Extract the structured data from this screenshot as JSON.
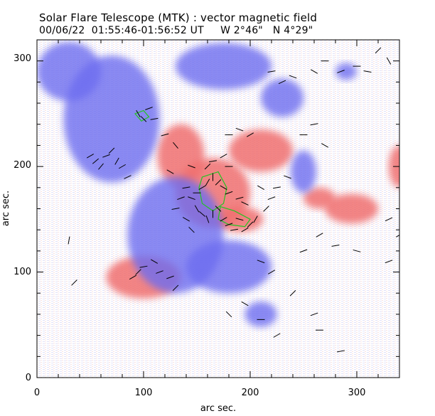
{
  "header": {
    "title": "Solar Flare Telescope (MTK) : vector magnetic field",
    "subtitle": "00/06/22  01:55:46-01:56:52 UT     W 2°46\"   N 4°29\""
  },
  "chart_data": {
    "type": "heatmap",
    "xlabel": "arc sec.",
    "ylabel": "arc sec.",
    "xlim": [
      0,
      340
    ],
    "ylim": [
      0,
      320
    ],
    "xticks": [
      "0",
      "100",
      "200",
      "300"
    ],
    "yticks": [
      "0",
      "100",
      "200",
      "300"
    ],
    "grid": false,
    "colors": {
      "positive_polarity": "#f07070",
      "negative_polarity": "#6d6df0",
      "contour": "#22c422",
      "vectors": "#000000"
    },
    "regions": [
      {
        "polarity": "positive",
        "x": 165,
        "y": 175,
        "rx": 35,
        "ry": 33
      },
      {
        "polarity": "positive",
        "x": 135,
        "y": 210,
        "rx": 22,
        "ry": 30
      },
      {
        "polarity": "positive",
        "x": 190,
        "y": 150,
        "rx": 22,
        "ry": 12
      },
      {
        "polarity": "positive",
        "x": 210,
        "y": 215,
        "rx": 30,
        "ry": 20
      },
      {
        "polarity": "positive",
        "x": 100,
        "y": 95,
        "rx": 35,
        "ry": 20
      },
      {
        "polarity": "positive",
        "x": 295,
        "y": 160,
        "rx": 25,
        "ry": 14
      },
      {
        "polarity": "positive",
        "x": 265,
        "y": 170,
        "rx": 15,
        "ry": 10
      },
      {
        "polarity": "positive",
        "x": 340,
        "y": 200,
        "rx": 10,
        "ry": 20
      },
      {
        "polarity": "negative",
        "x": 70,
        "y": 245,
        "rx": 45,
        "ry": 60
      },
      {
        "polarity": "negative",
        "x": 130,
        "y": 135,
        "rx": 45,
        "ry": 55
      },
      {
        "polarity": "negative",
        "x": 30,
        "y": 290,
        "rx": 30,
        "ry": 28
      },
      {
        "polarity": "negative",
        "x": 175,
        "y": 295,
        "rx": 45,
        "ry": 22
      },
      {
        "polarity": "negative",
        "x": 230,
        "y": 265,
        "rx": 20,
        "ry": 18
      },
      {
        "polarity": "negative",
        "x": 180,
        "y": 105,
        "rx": 40,
        "ry": 25
      },
      {
        "polarity": "negative",
        "x": 210,
        "y": 60,
        "rx": 15,
        "ry": 12
      },
      {
        "polarity": "negative",
        "x": 250,
        "y": 195,
        "rx": 12,
        "ry": 20
      },
      {
        "polarity": "negative",
        "x": 290,
        "y": 290,
        "rx": 10,
        "ry": 8
      }
    ],
    "contours": [
      {
        "points": [
          [
            155,
            190
          ],
          [
            170,
            195
          ],
          [
            178,
            180
          ],
          [
            175,
            165
          ],
          [
            165,
            158
          ],
          [
            155,
            165
          ],
          [
            152,
            180
          ]
        ]
      },
      {
        "points": [
          [
            172,
            162
          ],
          [
            185,
            158
          ],
          [
            200,
            150
          ],
          [
            195,
            143
          ],
          [
            180,
            145
          ],
          [
            170,
            150
          ]
        ]
      },
      {
        "points": [
          [
            92,
            250
          ],
          [
            100,
            253
          ],
          [
            105,
            247
          ],
          [
            98,
            243
          ]
        ]
      }
    ],
    "vectors": [
      [
        50,
        210,
        30
      ],
      [
        55,
        205,
        40
      ],
      [
        60,
        200,
        50
      ],
      [
        65,
        210,
        20
      ],
      [
        70,
        215,
        45
      ],
      [
        75,
        205,
        60
      ],
      [
        80,
        200,
        30
      ],
      [
        85,
        190,
        25
      ],
      [
        95,
        250,
        -60
      ],
      [
        100,
        245,
        -45
      ],
      [
        105,
        255,
        20
      ],
      [
        110,
        245,
        10
      ],
      [
        120,
        230,
        15
      ],
      [
        125,
        195,
        -30
      ],
      [
        130,
        220,
        -50
      ],
      [
        140,
        180,
        10
      ],
      [
        145,
        170,
        -20
      ],
      [
        150,
        175,
        0
      ],
      [
        155,
        180,
        30
      ],
      [
        160,
        185,
        60
      ],
      [
        165,
        190,
        90
      ],
      [
        170,
        185,
        45
      ],
      [
        175,
        180,
        -30
      ],
      [
        180,
        175,
        20
      ],
      [
        150,
        160,
        -60
      ],
      [
        155,
        155,
        -40
      ],
      [
        160,
        150,
        -70
      ],
      [
        165,
        155,
        -90
      ],
      [
        170,
        160,
        -45
      ],
      [
        175,
        150,
        30
      ],
      [
        180,
        145,
        20
      ],
      [
        185,
        140,
        10
      ],
      [
        190,
        150,
        -15
      ],
      [
        195,
        140,
        30
      ],
      [
        200,
        145,
        45
      ],
      [
        205,
        150,
        60
      ],
      [
        140,
        150,
        -30
      ],
      [
        145,
        140,
        -45
      ],
      [
        130,
        160,
        10
      ],
      [
        135,
        170,
        20
      ],
      [
        160,
        200,
        45
      ],
      [
        165,
        205,
        10
      ],
      [
        145,
        200,
        -20
      ],
      [
        180,
        200,
        0
      ],
      [
        175,
        210,
        30
      ],
      [
        210,
        180,
        -30
      ],
      [
        220,
        170,
        20
      ],
      [
        215,
        160,
        45
      ],
      [
        225,
        180,
        10
      ],
      [
        235,
        190,
        -20
      ],
      [
        190,
        170,
        15
      ],
      [
        195,
        165,
        -25
      ],
      [
        260,
        290,
        -30
      ],
      [
        270,
        300,
        0
      ],
      [
        285,
        290,
        20
      ],
      [
        300,
        295,
        0
      ],
      [
        310,
        290,
        -10
      ],
      [
        220,
        290,
        10
      ],
      [
        230,
        280,
        25
      ],
      [
        240,
        285,
        -20
      ],
      [
        320,
        310,
        45
      ],
      [
        330,
        300,
        -60
      ],
      [
        250,
        230,
        0
      ],
      [
        260,
        240,
        10
      ],
      [
        270,
        220,
        -30
      ],
      [
        180,
        230,
        0
      ],
      [
        190,
        235,
        -20
      ],
      [
        200,
        230,
        30
      ],
      [
        90,
        95,
        30
      ],
      [
        95,
        100,
        45
      ],
      [
        100,
        105,
        10
      ],
      [
        110,
        110,
        -30
      ],
      [
        115,
        100,
        20
      ],
      [
        130,
        85,
        45
      ],
      [
        125,
        95,
        20
      ],
      [
        210,
        110,
        -20
      ],
      [
        220,
        100,
        30
      ],
      [
        240,
        80,
        45
      ],
      [
        250,
        120,
        20
      ],
      [
        265,
        135,
        30
      ],
      [
        280,
        125,
        10
      ],
      [
        300,
        120,
        -15
      ],
      [
        330,
        150,
        25
      ],
      [
        340,
        135,
        30
      ],
      [
        330,
        110,
        20
      ],
      [
        180,
        60,
        -45
      ],
      [
        195,
        70,
        -30
      ],
      [
        210,
        55,
        0
      ],
      [
        225,
        40,
        30
      ],
      [
        260,
        60,
        20
      ],
      [
        265,
        45,
        0
      ],
      [
        285,
        25,
        10
      ],
      [
        30,
        130,
        80
      ],
      [
        35,
        90,
        45
      ]
    ]
  }
}
